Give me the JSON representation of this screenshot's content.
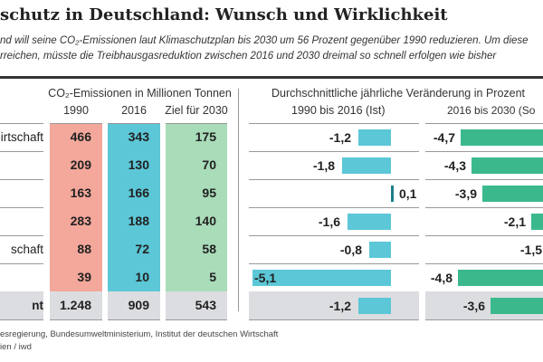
{
  "title": "schutz in Deutschland: Wunsch und Wirklichkeit",
  "subtitle": [
    "nd will seine CO₂-Emissionen laut Klimaschutzplan bis 2030 um 56 Prozent gegenüber 1990 reduzieren. Um diese",
    "rreichen, müsste die Treibhausgasreduktion zwischen 2016 und 2030 dreimal so schnell erfolgen wie bisher"
  ],
  "left_header": "CO₂-Emissionen in Millionen Tonnen",
  "right_header": "Durchschnittliche jährliche Veränderung in Prozent",
  "footer": [
    "esregierung, Bundesumweltministerium, Institut der deutschen Wirtschaft",
    "ien / iwd"
  ],
  "colors": {
    "col1990": "#f4a79b",
    "col2016": "#5cc7d7",
    "col2030": "#a9dcb9",
    "total": "#dcdde0",
    "bar_ist": "#5cc7d7",
    "bar_soll": "#3bb98d",
    "bar_pos": "#1d7f86"
  },
  "chart_data": {
    "type": "table",
    "columns": [
      "1990",
      "2016",
      "Ziel für 2030"
    ],
    "rows": [
      {
        "label": "irtschaft",
        "values": [
          "466",
          "343",
          "175"
        ],
        "ist": -1.2,
        "soll": -4.7,
        "ist_label": "-1,2",
        "soll_label": "-4,7"
      },
      {
        "label": "",
        "values": [
          "209",
          "130",
          "70"
        ],
        "ist": -1.8,
        "soll": -4.3,
        "ist_label": "-1,8",
        "soll_label": "-4,3"
      },
      {
        "label": "",
        "values": [
          "163",
          "166",
          "95"
        ],
        "ist": 0.1,
        "soll": -3.9,
        "ist_label": "0,1",
        "soll_label": "-3,9"
      },
      {
        "label": "",
        "values": [
          "283",
          "188",
          "140"
        ],
        "ist": -1.6,
        "soll": -2.1,
        "ist_label": "-1,6",
        "soll_label": "-2,1"
      },
      {
        "label": "schaft",
        "values": [
          "88",
          "72",
          "58"
        ],
        "ist": -0.8,
        "soll": -1.5,
        "ist_label": "-0,8",
        "soll_label": "-1,5"
      },
      {
        "label": "",
        "values": [
          "39",
          "10",
          "5"
        ],
        "ist": -5.1,
        "soll": -4.8,
        "ist_label": "-5,1",
        "soll_label": "-4,8"
      },
      {
        "label": "nt",
        "values": [
          "1.248",
          "909",
          "543"
        ],
        "ist": -1.2,
        "soll": -3.6,
        "ist_label": "-1,2",
        "soll_label": "-3,6",
        "total": true
      }
    ],
    "bar_series": [
      {
        "name": "1990 bis 2016 (Ist)"
      },
      {
        "name": "2016 bis 2030 (So"
      }
    ]
  }
}
